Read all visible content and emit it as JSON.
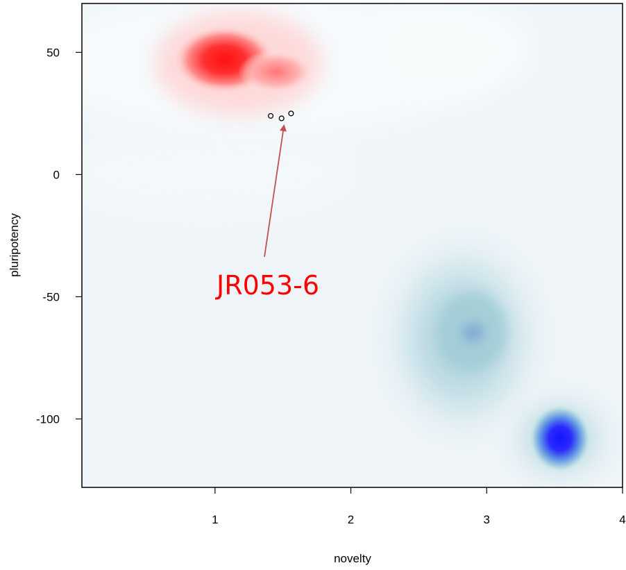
{
  "chart_data": {
    "type": "scatter",
    "title": "",
    "xlabel": "novelty",
    "ylabel": "pluripotency",
    "xlim": [
      0.02,
      4.0
    ],
    "ylim": [
      -128,
      70
    ],
    "x_ticks": [
      1,
      2,
      3,
      4
    ],
    "x_tick_labels": [
      "1",
      "2",
      "3",
      "4"
    ],
    "y_ticks": [
      50,
      0,
      -50,
      -100
    ],
    "y_tick_labels": [
      "50",
      "0",
      "-50",
      "-100"
    ],
    "grid": false,
    "legend": "none",
    "background_density": {
      "description_colors": {
        "low": "#f3f8fb",
        "red": "#ff1a1a",
        "blue": "#1a1aff",
        "teal": "#a9d3da"
      },
      "red_clusters": [
        {
          "x": 1.07,
          "y": 47,
          "weight": 1.0
        },
        {
          "x": 1.45,
          "y": 42,
          "weight": 0.35
        }
      ],
      "blue_clusters": [
        {
          "x": 2.9,
          "y": -64,
          "weight": 0.55,
          "tone": "teal"
        },
        {
          "x": 3.54,
          "y": -108,
          "weight": 1.0,
          "tone": "blue"
        }
      ]
    },
    "points": [
      {
        "x": 1.41,
        "y": 24
      },
      {
        "x": 1.49,
        "y": 23
      },
      {
        "x": 1.56,
        "y": 25
      }
    ],
    "annotations": [
      {
        "text": "JR053-6",
        "color": "#ff0000",
        "arrow_color": "#c0504d",
        "arrow_target": {
          "x": 1.49,
          "y": 22
        }
      }
    ]
  }
}
